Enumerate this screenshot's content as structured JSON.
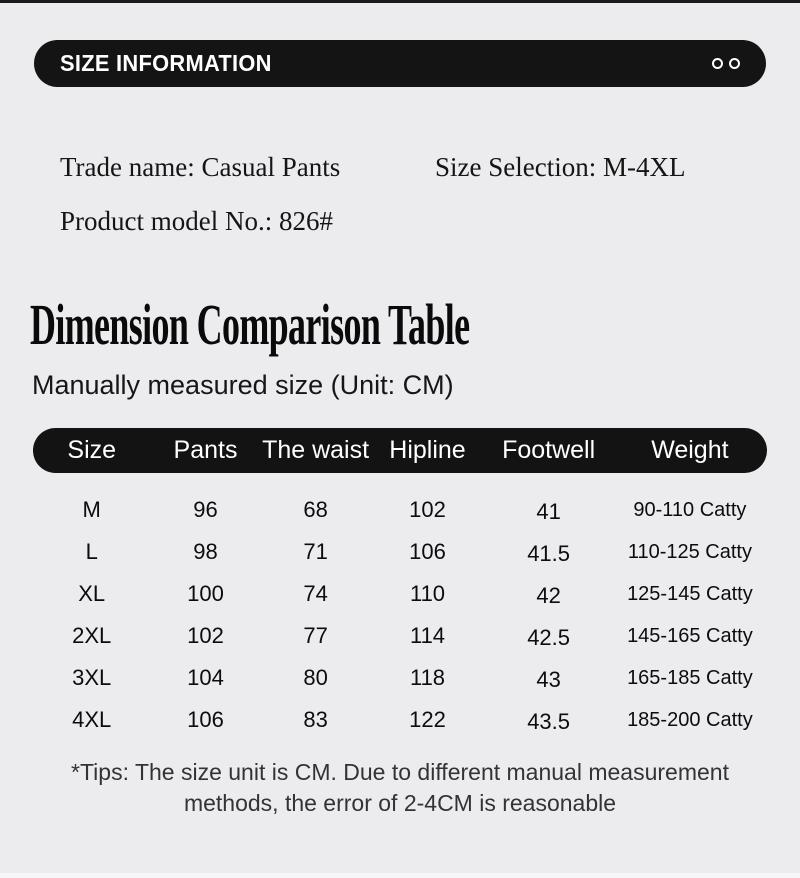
{
  "banner": {
    "title": "SIZE INFORMATION",
    "decoration": "two-circle-outline-icons"
  },
  "product_info": {
    "trade_name": "Trade name: Casual Pants",
    "size_selection": "Size Selection: M-4XL",
    "model_no": "Product model No.: 826#"
  },
  "section": {
    "title": "Dimension Comparison Table",
    "subtitle": "Manually measured size (Unit: CM)"
  },
  "size_table": {
    "headers": [
      "Size",
      "Pants",
      "The waist",
      "Hipline",
      "Footwell",
      "Weight"
    ],
    "rows": [
      [
        "M",
        "96",
        "68",
        "102",
        "41",
        "90-110 Catty"
      ],
      [
        "L",
        "98",
        "71",
        "106",
        "41.5",
        "110-125 Catty"
      ],
      [
        "XL",
        "100",
        "74",
        "110",
        "42",
        "125-145 Catty"
      ],
      [
        "2XL",
        "102",
        "77",
        "114",
        "42.5",
        "145-165 Catty"
      ],
      [
        "3XL",
        "104",
        "80",
        "118",
        "43",
        "165-185 Catty"
      ],
      [
        "4XL",
        "106",
        "83",
        "122",
        "43.5",
        "185-200 Catty"
      ]
    ]
  },
  "tips": {
    "line1": "*Tips: The size unit is CM. Due to different manual measurement",
    "line2": "methods, the error of 2-4CM is reasonable"
  },
  "colors": {
    "page_bg": "#ececee",
    "banner_bg": "#141414",
    "banner_text": "#ffffff",
    "body_text": "#111111",
    "tips_text": "#333333"
  }
}
